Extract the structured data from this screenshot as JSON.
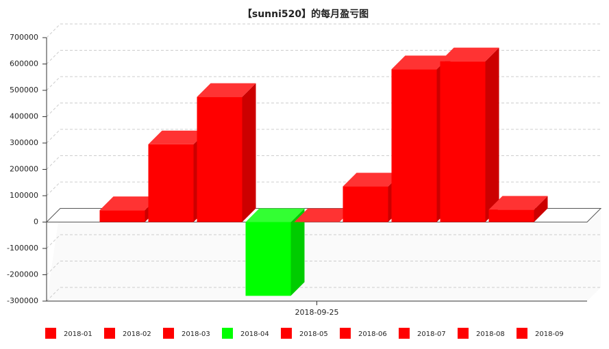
{
  "chart_data": {
    "type": "bar3d",
    "title": "【sunni520】的每月盈亏图",
    "categories": [
      "2018-09-25"
    ],
    "series": [
      {
        "name": "2018-01",
        "color": "#ff0000",
        "values": [
          45000
        ]
      },
      {
        "name": "2018-02",
        "color": "#ff0000",
        "values": [
          295000
        ]
      },
      {
        "name": "2018-03",
        "color": "#ff0000",
        "values": [
          475000
        ]
      },
      {
        "name": "2018-04",
        "color": "#00ff00",
        "values": [
          -280000
        ]
      },
      {
        "name": "2018-05",
        "color": "#ff0000",
        "values": [
          0
        ]
      },
      {
        "name": "2018-06",
        "color": "#ff0000",
        "values": [
          135000
        ]
      },
      {
        "name": "2018-07",
        "color": "#ff0000",
        "values": [
          580000
        ]
      },
      {
        "name": "2018-08",
        "color": "#ff0000",
        "values": [
          610000
        ]
      },
      {
        "name": "2018-09",
        "color": "#ff0000",
        "values": [
          47000
        ]
      }
    ],
    "ylim": [
      -300000,
      700000
    ],
    "yticks": [
      -300000,
      -200000,
      -100000,
      0,
      100000,
      200000,
      300000,
      400000,
      500000,
      600000,
      700000
    ],
    "grid": true
  }
}
